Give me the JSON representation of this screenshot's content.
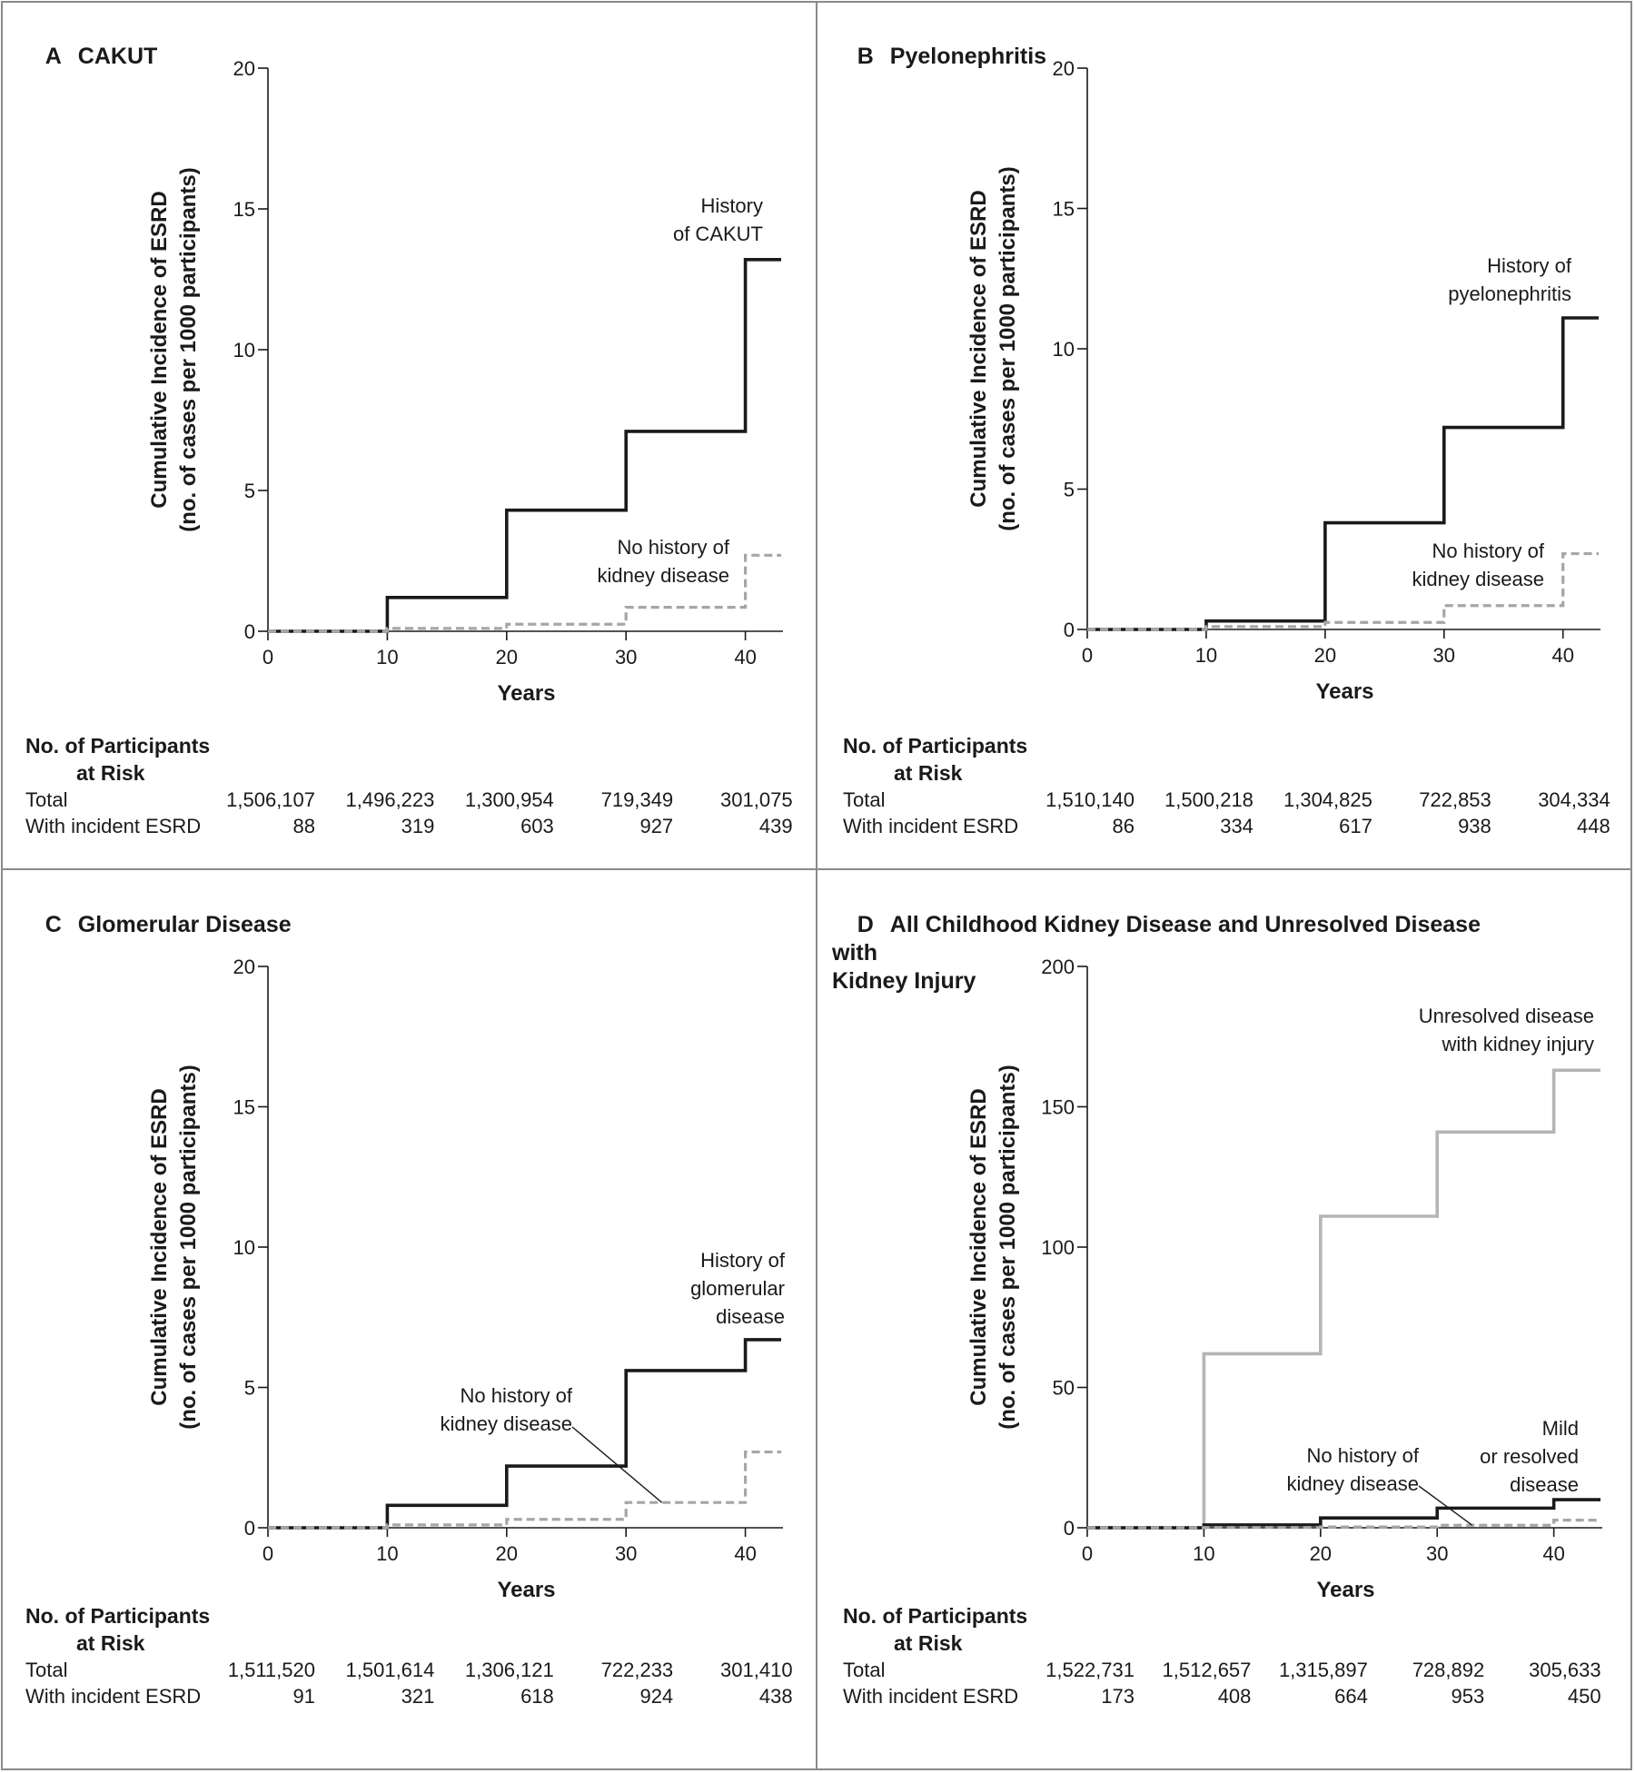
{
  "panels": [
    {
      "letter": "A",
      "title": "CAKUT",
      "chart_data": {
        "type": "line",
        "step": true,
        "xlabel": "Years",
        "ylabel_lines": [
          "Cumulative Incidence of ESRD",
          "(no. of cases per 1000 participants)"
        ],
        "xlim": [
          0,
          43
        ],
        "ylim": [
          0,
          20
        ],
        "xticks": [
          0,
          10,
          20,
          30,
          40
        ],
        "yticks": [
          0,
          5,
          10,
          15,
          20
        ],
        "series": [
          {
            "name": "History of CAKUT",
            "label_lines": [
              "History",
              "of CAKUT"
            ],
            "style": "solid-black",
            "x": [
              0,
              10,
              20,
              30,
              40,
              43
            ],
            "y": [
              0,
              1.2,
              4.3,
              7.1,
              13.2,
              13.2
            ]
          },
          {
            "name": "No history of kidney disease",
            "label_lines": [
              "No history of",
              "kidney disease"
            ],
            "style": "dashed-gray",
            "x": [
              0,
              10,
              20,
              30,
              40,
              43
            ],
            "y": [
              0,
              0.1,
              0.25,
              0.85,
              2.7,
              2.7
            ]
          }
        ]
      },
      "risk": {
        "heading_lines": [
          "No. of Participants",
          "at Risk"
        ],
        "rows": [
          {
            "label": "Total",
            "values": [
              "1,506,107",
              "1,496,223",
              "1,300,954",
              "719,349",
              "301,075"
            ]
          },
          {
            "label": "With incident ESRD",
            "values": [
              "88",
              "319",
              "603",
              "927",
              "439"
            ]
          }
        ]
      }
    },
    {
      "letter": "B",
      "title": "Pyelonephritis",
      "chart_data": {
        "type": "line",
        "step": true,
        "xlabel": "Years",
        "ylabel_lines": [
          "Cumulative Incidence of ESRD",
          "(no. of cases per 1000 participants)"
        ],
        "xlim": [
          0,
          43
        ],
        "ylim": [
          0,
          20
        ],
        "xticks": [
          0,
          10,
          20,
          30,
          40
        ],
        "yticks": [
          0,
          5,
          10,
          15,
          20
        ],
        "series": [
          {
            "name": "History of pyelonephritis",
            "label_lines": [
              "History of",
              "pyelonephritis"
            ],
            "style": "solid-black",
            "x": [
              0,
              10,
              20,
              30,
              40,
              43
            ],
            "y": [
              0,
              0.3,
              3.8,
              7.2,
              11.1,
              11.1
            ]
          },
          {
            "name": "No history of kidney disease",
            "label_lines": [
              "No history of",
              "kidney disease"
            ],
            "style": "dashed-gray",
            "x": [
              0,
              10,
              20,
              30,
              40,
              43
            ],
            "y": [
              0,
              0.1,
              0.25,
              0.85,
              2.7,
              2.7
            ]
          }
        ]
      },
      "risk": {
        "heading_lines": [
          "No. of Participants",
          "at Risk"
        ],
        "rows": [
          {
            "label": "Total",
            "values": [
              "1,510,140",
              "1,500,218",
              "1,304,825",
              "722,853",
              "304,334"
            ]
          },
          {
            "label": "With incident ESRD",
            "values": [
              "86",
              "334",
              "617",
              "938",
              "448"
            ]
          }
        ]
      }
    },
    {
      "letter": "C",
      "title": "Glomerular Disease",
      "chart_data": {
        "type": "line",
        "step": true,
        "xlabel": "Years",
        "ylabel_lines": [
          "Cumulative Incidence of ESRD",
          "(no. of cases per 1000 participants)"
        ],
        "xlim": [
          0,
          43
        ],
        "ylim": [
          0,
          20
        ],
        "xticks": [
          0,
          10,
          20,
          30,
          40
        ],
        "yticks": [
          0,
          5,
          10,
          15,
          20
        ],
        "series": [
          {
            "name": "History of glomerular disease",
            "label_lines": [
              "History of",
              "glomerular",
              "disease"
            ],
            "style": "solid-black",
            "x": [
              0,
              10,
              20,
              30,
              40,
              43
            ],
            "y": [
              0,
              0.8,
              2.2,
              5.6,
              6.7,
              6.7
            ]
          },
          {
            "name": "No history of kidney disease",
            "label_lines": [
              "No history of",
              "kidney disease"
            ],
            "style": "dashed-gray",
            "x": [
              0,
              10,
              20,
              30,
              40,
              43
            ],
            "y": [
              0,
              0.1,
              0.3,
              0.9,
              2.7,
              2.7
            ]
          }
        ]
      },
      "risk": {
        "heading_lines": [
          "No. of Participants",
          "at Risk"
        ],
        "rows": [
          {
            "label": "Total",
            "values": [
              "1,511,520",
              "1,501,614",
              "1,306,121",
              "722,233",
              "301,410"
            ]
          },
          {
            "label": "With incident ESRD",
            "values": [
              "91",
              "321",
              "618",
              "924",
              "438"
            ]
          }
        ]
      }
    },
    {
      "letter": "D",
      "title": "All Childhood Kidney Disease and Unresolved Disease with\nKidney Injury",
      "chart_data": {
        "type": "line",
        "step": true,
        "xlabel": "Years",
        "ylabel_lines": [
          "Cumulative Incidence of ESRD",
          "(no. of cases per 1000 participants)"
        ],
        "xlim": [
          0,
          44
        ],
        "ylim": [
          0,
          200
        ],
        "xticks": [
          0,
          10,
          20,
          30,
          40
        ],
        "yticks": [
          0,
          50,
          100,
          150,
          200
        ],
        "series": [
          {
            "name": "Unresolved disease with kidney injury",
            "label_lines": [
              "Unresolved disease",
              "with kidney injury"
            ],
            "style": "solid-lightgray",
            "x": [
              0,
              10,
              20,
              30,
              40,
              44
            ],
            "y": [
              0,
              62,
              111,
              141,
              163,
              163
            ]
          },
          {
            "name": "Mild or resolved disease",
            "label_lines": [
              "Mild",
              "or resolved",
              "disease"
            ],
            "style": "solid-black",
            "x": [
              0,
              10,
              20,
              30,
              40,
              44
            ],
            "y": [
              0,
              1,
              3.5,
              7,
              10,
              10
            ]
          },
          {
            "name": "No history of kidney disease",
            "label_lines": [
              "No history of",
              "kidney disease"
            ],
            "style": "dashed-gray",
            "x": [
              0,
              10,
              20,
              30,
              40,
              44
            ],
            "y": [
              0,
              0.1,
              0.3,
              0.9,
              2.7,
              2.7
            ]
          }
        ]
      },
      "risk": {
        "heading_lines": [
          "No. of Participants",
          "at Risk"
        ],
        "rows": [
          {
            "label": "Total",
            "values": [
              "1,522,731",
              "1,512,657",
              "1,315,897",
              "728,892",
              "305,633"
            ]
          },
          {
            "label": "With incident ESRD",
            "values": [
              "173",
              "408",
              "664",
              "953",
              "450"
            ]
          }
        ]
      }
    }
  ]
}
